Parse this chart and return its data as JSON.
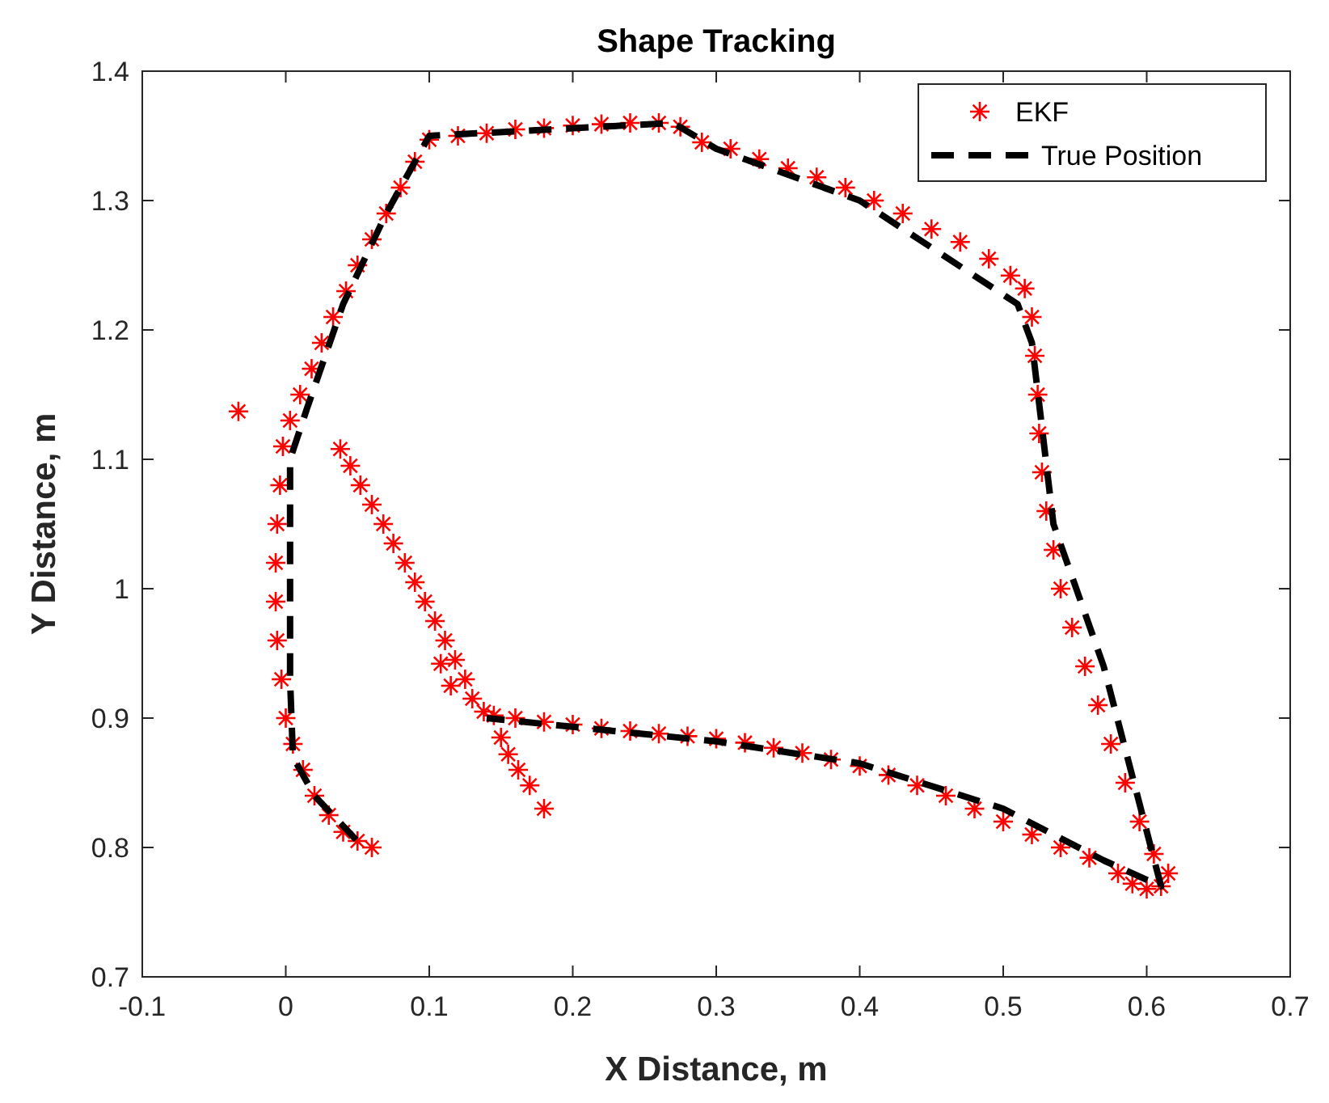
{
  "chart_data": {
    "type": "scatter",
    "title": "Shape Tracking",
    "xlabel": "X Distance, m",
    "ylabel": "Y Distance, m",
    "xlim": [
      -0.1,
      0.7
    ],
    "xticks": [
      -0.1,
      0,
      0.1,
      0.2,
      0.3,
      0.4,
      0.5,
      0.6,
      0.7
    ],
    "ylim": [
      0.7,
      1.4
    ],
    "yticks": [
      0.7,
      0.8,
      0.9,
      1,
      1.1,
      1.2,
      1.3,
      1.4
    ],
    "grid": false,
    "legend": "top right",
    "series": [
      {
        "name": "EKF",
        "color": "#ff0000",
        "marker": "cross",
        "x": [
          -0.033,
          0.038,
          0.045,
          0.052,
          0.06,
          0.068,
          0.075,
          0.083,
          0.09,
          0.097,
          0.104,
          0.111,
          0.118,
          0.125,
          0.108,
          0.115,
          0.13,
          0.138,
          0.15,
          0.155,
          0.162,
          0.17,
          0.18,
          0.06,
          0.05,
          0.04,
          0.03,
          0.02,
          0.012,
          0.005,
          0,
          -0.003,
          -0.006,
          -0.007,
          -0.007,
          -0.006,
          -0.004,
          -0.002,
          0.003,
          0.01,
          0.018,
          0.025,
          0.033,
          0.042,
          0.05,
          0.06,
          0.07,
          0.08,
          0.09,
          0.1,
          0.12,
          0.14,
          0.16,
          0.18,
          0.2,
          0.22,
          0.24,
          0.26,
          0.275,
          0.29,
          0.31,
          0.33,
          0.35,
          0.37,
          0.39,
          0.41,
          0.43,
          0.45,
          0.47,
          0.49,
          0.505,
          0.515,
          0.52,
          0.522,
          0.524,
          0.525,
          0.527,
          0.53,
          0.535,
          0.54,
          0.548,
          0.557,
          0.566,
          0.575,
          0.585,
          0.595,
          0.605,
          0.615,
          0.61,
          0.6,
          0.59,
          0.58,
          0.56,
          0.54,
          0.52,
          0.5,
          0.48,
          0.46,
          0.44,
          0.42,
          0.4,
          0.38,
          0.36,
          0.34,
          0.32,
          0.3,
          0.28,
          0.26,
          0.24,
          0.22,
          0.2,
          0.18,
          0.16,
          0.145
        ],
        "values": [
          1.137,
          1.108,
          1.095,
          1.08,
          1.065,
          1.05,
          1.035,
          1.02,
          1.005,
          0.99,
          0.975,
          0.96,
          0.945,
          0.93,
          0.942,
          0.925,
          0.915,
          0.905,
          0.885,
          0.872,
          0.86,
          0.848,
          0.83,
          0.8,
          0.805,
          0.812,
          0.825,
          0.84,
          0.86,
          0.88,
          0.9,
          0.93,
          0.96,
          0.99,
          1.02,
          1.05,
          1.08,
          1.11,
          1.13,
          1.15,
          1.17,
          1.19,
          1.21,
          1.23,
          1.25,
          1.27,
          1.29,
          1.31,
          1.33,
          1.347,
          1.35,
          1.352,
          1.355,
          1.356,
          1.358,
          1.359,
          1.36,
          1.36,
          1.357,
          1.345,
          1.34,
          1.332,
          1.325,
          1.318,
          1.31,
          1.3,
          1.29,
          1.278,
          1.268,
          1.255,
          1.242,
          1.232,
          1.21,
          1.18,
          1.15,
          1.12,
          1.09,
          1.06,
          1.03,
          1,
          0.97,
          0.94,
          0.91,
          0.88,
          0.85,
          0.82,
          0.795,
          0.78,
          0.77,
          0.768,
          0.772,
          0.78,
          0.792,
          0.8,
          0.81,
          0.82,
          0.83,
          0.84,
          0.848,
          0.856,
          0.863,
          0.868,
          0.873,
          0.877,
          0.881,
          0.884,
          0.886,
          0.888,
          0.89,
          0.892,
          0.895,
          0.897,
          0.9,
          0.902
        ]
      },
      {
        "name": "True Position",
        "type": "line",
        "color": "#000000",
        "line_style": "dashed",
        "marker": "none",
        "x": [
          0.049,
          0.02,
          0.005,
          0.003,
          0.003,
          0.015,
          0.04,
          0.07,
          0.1,
          0.27,
          0.3,
          0.4,
          0.51,
          0.52,
          0.535,
          0.57,
          0.61,
          0.57,
          0.5,
          0.4,
          0.3,
          0.14
        ],
        "values": [
          0.806,
          0.84,
          0.87,
          0.93,
          1.1,
          1.14,
          1.22,
          1.29,
          1.35,
          1.36,
          1.34,
          1.3,
          1.22,
          1.19,
          1.05,
          0.94,
          0.77,
          0.79,
          0.83,
          0.865,
          0.882,
          0.9
        ]
      }
    ]
  }
}
